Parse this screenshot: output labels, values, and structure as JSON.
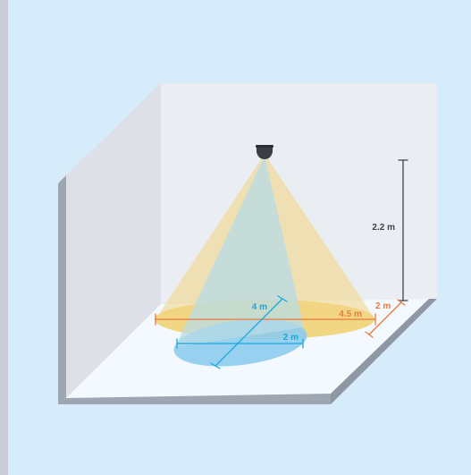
{
  "colors": {
    "background": "#d6ecfb",
    "left_strip": "#c9ced6",
    "back_wall": "#eaedf1",
    "side_wall": "#dde1e7",
    "wall_edge": "#9ea6b1",
    "floor": "#f3f9fe",
    "yellow_cone": "#f3d581",
    "yellow_ellipse": "#f0d06e",
    "blue_cone": "#b7dbe6",
    "blue_ellipse": "#8ecbee",
    "orange_dim": "#ea7a3b",
    "cyan_dim": "#1aa8dc",
    "dark_dim": "#3d4350",
    "sensor": "#3a3d43"
  },
  "labels": {
    "height": "2.2 m",
    "large_diameter": "4.5 m",
    "large_depth": "2 m",
    "small_length": "4 m",
    "small_width": "2 m"
  },
  "icons": {
    "sensor": "ceiling-sensor-icon"
  }
}
